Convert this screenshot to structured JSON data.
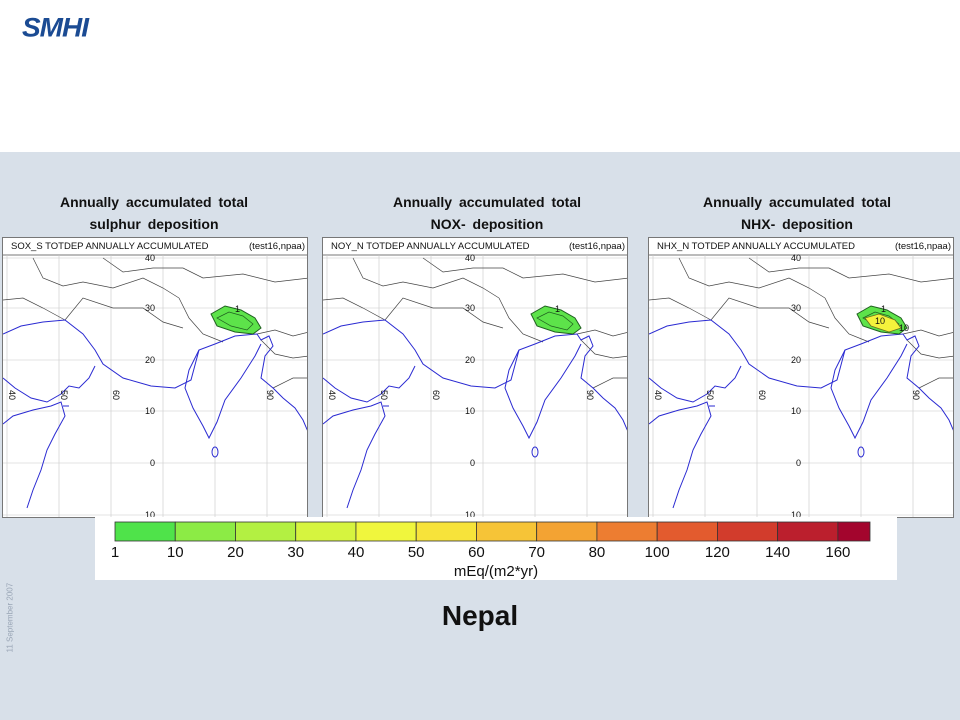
{
  "header": {
    "logo_text": "SMHI"
  },
  "footer": {
    "date": "11 September 2007"
  },
  "caption": "Nepal",
  "panels": [
    {
      "title_line1": "Annually accumulated total",
      "title_line2": "sulphur deposition",
      "map_label": "SOX_S TOTDEP ANNUALLY ACCUMULATED",
      "run_label": "(test16,npaa)",
      "contour_labels": [
        "1"
      ],
      "fill": "#5de34a"
    },
    {
      "title_line1": "Annually accumulated total",
      "title_line2": "NOX- deposition",
      "map_label": "NOY_N TOTDEP ANNUALLY ACCUMULATED",
      "run_label": "(test16,npaa)",
      "contour_labels": [
        "1"
      ],
      "fill": "#5de34a"
    },
    {
      "title_line1": "Annually accumulated total",
      "title_line2": "NHX- deposition",
      "map_label": "NHX_N TOTDEP ANNUALLY ACCUMULATED",
      "run_label": "(test16,npaa)",
      "contour_labels": [
        "1",
        "10",
        "10"
      ],
      "fill": "#5de34a",
      "inner_fill": "#f4f23c"
    }
  ],
  "map": {
    "lat_labels": [
      "40",
      "30",
      "20",
      "10",
      "0",
      "10"
    ],
    "lon_labels": [
      "40",
      "50",
      "60",
      "90"
    ]
  },
  "legend": {
    "ticks": [
      "1",
      "10",
      "20",
      "30",
      "40",
      "50",
      "60",
      "70",
      "80",
      "100",
      "120",
      "140",
      "160"
    ],
    "colors": [
      "#4fe34a",
      "#8ceb45",
      "#b3f042",
      "#d6f43f",
      "#f0f63d",
      "#f7e33a",
      "#f6c437",
      "#f3a333",
      "#ed7d31",
      "#e35b2e",
      "#d23c2c",
      "#bb1f2d",
      "#a3052d"
    ],
    "unit": "mEq/(m2*yr)"
  }
}
